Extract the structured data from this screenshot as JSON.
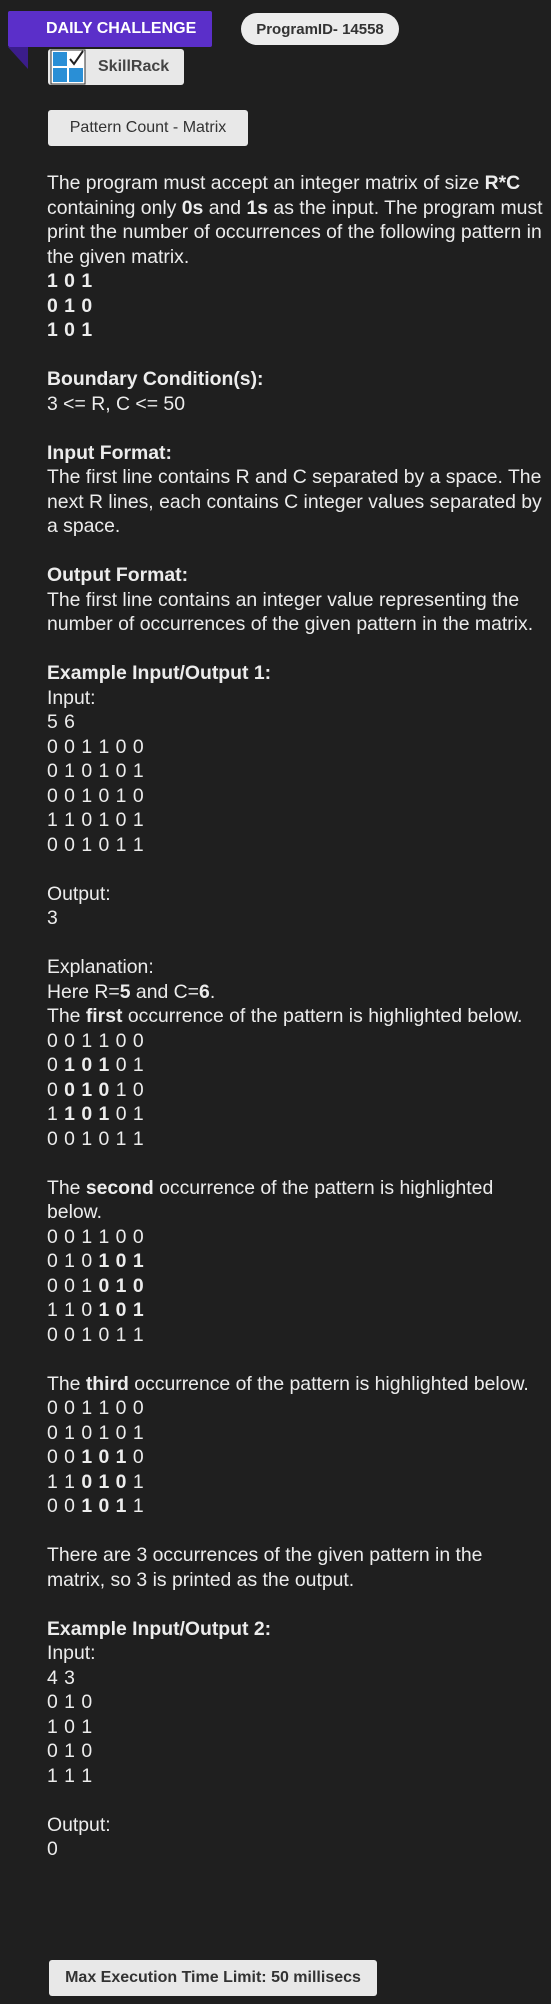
{
  "header": {
    "ribbon_label": "DAILY CHALLENGE",
    "program_id": "ProgramID- 14558",
    "brand": "SkillRack",
    "problem_title": "Pattern Count - Matrix"
  },
  "problem": {
    "desc_parts": [
      "The program must accept an integer matrix of size ",
      "R*C",
      " containing only ",
      "0s",
      " and ",
      "1s",
      " as the input. The program must print the number of occurrences of the following pattern in the given matrix."
    ],
    "pattern": [
      "1 0 1",
      "0 1 0",
      "1 0 1"
    ],
    "boundary_heading": "Boundary Condition(s):",
    "boundary_text": "3 <= R, C <= 50",
    "input_heading": "Input Format:",
    "input_text": "The first line contains R and C separated by a space. The next R lines, each contains C integer values separated by a space.",
    "output_heading": "Output Format:",
    "output_text": "The first line contains an integer value representing the number of occurrences of the given pattern in the matrix.",
    "example1_heading": "Example Input/Output 1:",
    "input_label": "Input:",
    "ex1_input": [
      "5 6",
      "0 0 1 1 0 0",
      "0 1 0 1 0 1",
      "0 0 1 0 1 0",
      "1 1 0 1 0 1",
      "0 0 1 0 1 1"
    ],
    "output_label": "Output:",
    "ex1_output": "3",
    "explanation_label": "Explanation:",
    "expl_parts": [
      "Here R=",
      "5",
      " and C=",
      "6",
      "."
    ],
    "occ1_parts": [
      "The ",
      "first",
      " occurrence of the pattern is highlighted below."
    ],
    "occ2_parts": [
      "The ",
      "second",
      " occurrence of the pattern is highlighted below."
    ],
    "occ3_parts": [
      "The ",
      "third",
      " occurrence of the pattern is highlighted below."
    ],
    "conclusion": "There are 3 occurrences of the given pattern in the matrix, so 3 is printed as the output.",
    "example2_heading": "Example Input/Output 2:",
    "ex2_input": [
      "4 3",
      "0 1 0",
      "1 0 1",
      "0 1 0",
      "1 1 1"
    ],
    "ex2_output": "0"
  },
  "matrices": {
    "occ1": [
      [
        "0 0 1 1 0 0",
        "",
        ""
      ],
      [
        "0 ",
        "1 0 1",
        " 0 1"
      ],
      [
        "0 ",
        "0 1 0",
        " 1 0"
      ],
      [
        "1 ",
        "1 0 1",
        " 0 1"
      ],
      [
        "0 0 1 0 1 1",
        "",
        ""
      ]
    ],
    "occ2": [
      [
        "0 0 1 1 0 0",
        "",
        ""
      ],
      [
        "0 1 0 ",
        "1 0 1",
        ""
      ],
      [
        "0 0 1 ",
        "0 1 0",
        ""
      ],
      [
        "1 1 0 ",
        "1 0 1",
        ""
      ],
      [
        "0 0 1 0 1 1",
        "",
        ""
      ]
    ],
    "occ3": [
      [
        "0 0 1 1 0 0",
        "",
        ""
      ],
      [
        "0 1 0 1 0 1",
        "",
        ""
      ],
      [
        "0 0 ",
        "1 0 1",
        " 0"
      ],
      [
        "1 1 ",
        "0 1 0",
        " 1"
      ],
      [
        "0 0 ",
        "1 0 1",
        " 1"
      ]
    ]
  },
  "footer": {
    "time_limit": "Max Execution Time Limit: 50 millisecs"
  },
  "colors": {
    "background": "#1f1f1f",
    "ribbon": "#5b2fc9",
    "logo_blue": "#2a8fd6"
  }
}
